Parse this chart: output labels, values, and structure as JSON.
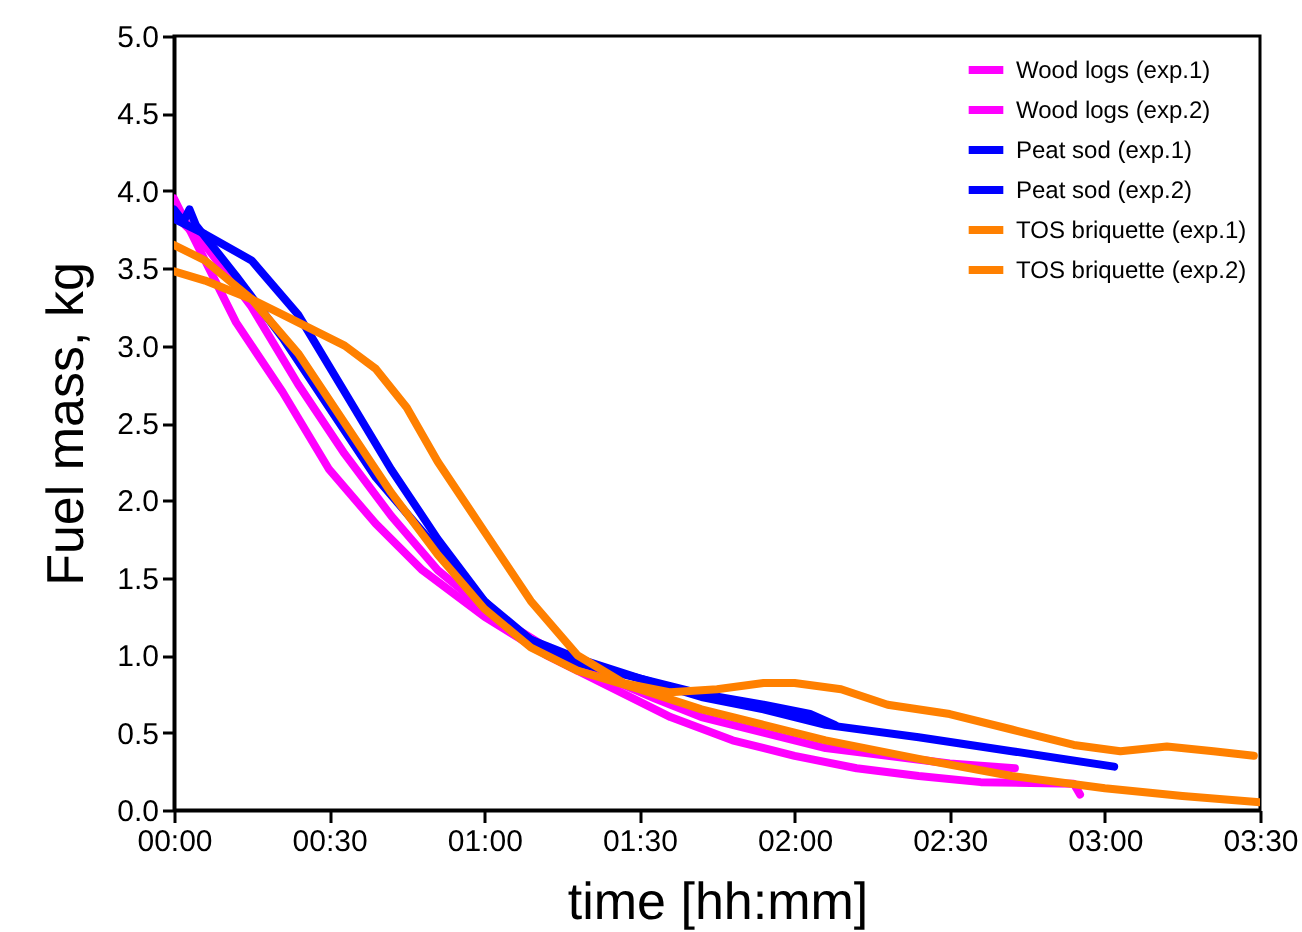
{
  "chart_data": {
    "type": "line",
    "xlabel": "time [hh:mm]",
    "ylabel": "Fuel mass, kg",
    "xlim": [
      0,
      3.5
    ],
    "ylim": [
      0,
      5
    ],
    "xticks": [
      {
        "value": 0,
        "label": "00:00"
      },
      {
        "value": 0.5,
        "label": "00:30"
      },
      {
        "value": 1,
        "label": "01:00"
      },
      {
        "value": 1.5,
        "label": "01:30"
      },
      {
        "value": 2,
        "label": "02:00"
      },
      {
        "value": 2.5,
        "label": "02:30"
      },
      {
        "value": 3,
        "label": "03:00"
      },
      {
        "value": 3.5,
        "label": "03:30"
      }
    ],
    "yticks": [
      {
        "value": 0,
        "label": "0.0"
      },
      {
        "value": 0.5,
        "label": "0.5"
      },
      {
        "value": 1,
        "label": "1.0"
      },
      {
        "value": 1.5,
        "label": "1.5"
      },
      {
        "value": 2,
        "label": "2.0"
      },
      {
        "value": 2.5,
        "label": "2.5"
      },
      {
        "value": 3,
        "label": "3.0"
      },
      {
        "value": 3.5,
        "label": "3.5"
      },
      {
        "value": 4,
        "label": "4.0"
      },
      {
        "value": 4.5,
        "label": "4.5"
      },
      {
        "value": 5,
        "label": "5.0"
      }
    ],
    "grid": false,
    "legend": "top right",
    "series": [
      {
        "name": "Wood logs (exp.1)",
        "color": "#ff00ff",
        "x": [
          0,
          0.05,
          0.2,
          0.35,
          0.5,
          0.65,
          0.8,
          1.0,
          1.2,
          1.4,
          1.6,
          1.8,
          2.0,
          2.2,
          2.4,
          2.6,
          2.9,
          2.92
        ],
        "values": [
          3.95,
          3.75,
          3.15,
          2.7,
          2.2,
          1.85,
          1.55,
          1.25,
          1.0,
          0.8,
          0.6,
          0.45,
          0.35,
          0.27,
          0.22,
          0.18,
          0.17,
          0.1
        ]
      },
      {
        "name": "Wood logs (exp.2)",
        "color": "#ff00ff",
        "x": [
          0,
          0.1,
          0.25,
          0.4,
          0.55,
          0.7,
          0.85,
          1.0,
          1.2,
          1.4,
          1.55,
          1.7,
          1.9,
          2.1,
          2.3,
          2.5,
          2.71
        ],
        "values": [
          3.85,
          3.65,
          3.25,
          2.75,
          2.3,
          1.9,
          1.55,
          1.3,
          1.05,
          0.85,
          0.72,
          0.6,
          0.5,
          0.4,
          0.35,
          0.3,
          0.27
        ]
      },
      {
        "name": "Peat sod (exp.1)",
        "color": "#0000ff",
        "x": [
          0,
          0.1,
          0.25,
          0.4,
          0.55,
          0.7,
          0.85,
          1.0,
          1.15,
          1.3,
          1.5,
          1.7,
          1.9,
          2.1,
          2.4,
          2.7,
          3.03
        ],
        "values": [
          3.82,
          3.72,
          3.55,
          3.2,
          2.7,
          2.2,
          1.75,
          1.35,
          1.1,
          0.98,
          0.85,
          0.73,
          0.65,
          0.55,
          0.47,
          0.38,
          0.28
        ]
      },
      {
        "name": "Peat sod (exp.2)",
        "color": "#0000ff",
        "x": [
          0,
          0.03,
          0.05,
          0.07,
          0.2,
          0.35,
          0.5,
          0.65,
          0.8,
          0.95,
          1.1,
          1.3,
          1.5,
          1.7,
          1.9,
          2.05,
          2.13
        ],
        "values": [
          3.88,
          3.8,
          3.88,
          3.78,
          3.45,
          3.05,
          2.6,
          2.15,
          1.8,
          1.45,
          1.15,
          0.95,
          0.85,
          0.75,
          0.68,
          0.62,
          0.55
        ]
      },
      {
        "name": "TOS briquette (exp.1)",
        "color": "#ff8000",
        "x": [
          0,
          0.1,
          0.25,
          0.4,
          0.55,
          0.7,
          0.85,
          1.0,
          1.15,
          1.3,
          1.5,
          1.7,
          1.9,
          2.1,
          2.4,
          2.7,
          3.0,
          3.25,
          3.5
        ],
        "values": [
          3.65,
          3.55,
          3.3,
          2.95,
          2.5,
          2.05,
          1.65,
          1.3,
          1.05,
          0.9,
          0.78,
          0.65,
          0.55,
          0.45,
          0.33,
          0.22,
          0.14,
          0.09,
          0.05
        ]
      },
      {
        "name": "TOS briquette (exp.2)",
        "color": "#ff8000",
        "x": [
          0,
          0.1,
          0.25,
          0.4,
          0.55,
          0.65,
          0.75,
          0.85,
          1.0,
          1.15,
          1.3,
          1.45,
          1.6,
          1.75,
          1.9,
          2.0,
          2.15,
          2.3,
          2.5,
          2.7,
          2.9,
          3.05,
          3.2,
          3.35,
          3.48
        ],
        "values": [
          3.48,
          3.42,
          3.3,
          3.15,
          3.0,
          2.85,
          2.6,
          2.25,
          1.8,
          1.35,
          1.0,
          0.82,
          0.76,
          0.78,
          0.82,
          0.82,
          0.78,
          0.68,
          0.62,
          0.52,
          0.42,
          0.38,
          0.41,
          0.38,
          0.35
        ]
      }
    ]
  }
}
